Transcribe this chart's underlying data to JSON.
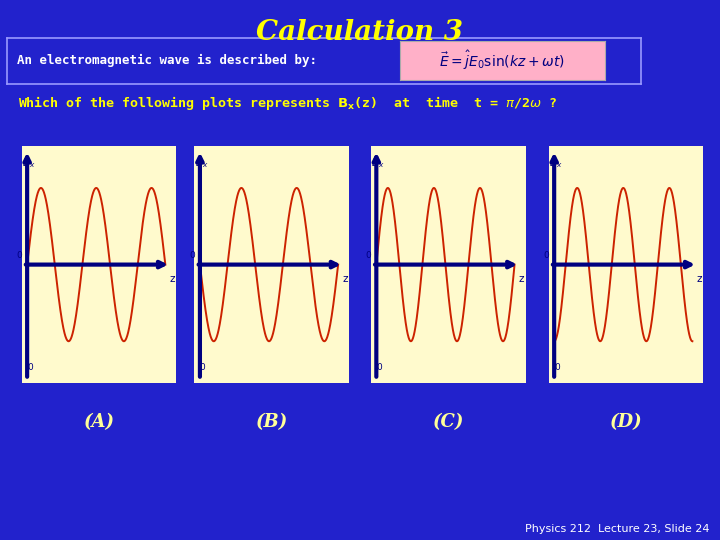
{
  "title": "Calculation 3",
  "title_color": "#FFFF00",
  "bg_color": "#2222CC",
  "subtitle": "An electromagnetic wave is described by:",
  "plot_labels": [
    "(A)",
    "(B)",
    "(C)",
    "(D)"
  ],
  "plot_bg": "#FFFACD",
  "wave_color": "#CC2200",
  "axis_color": "#000080",
  "footer": "Physics 212  Lecture 23, Slide 24",
  "footer_color": "#FFFFFF",
  "formula_bg": "#FFB0C8",
  "plots": [
    {
      "phase": 0.0,
      "n_cycles": 2.5
    },
    {
      "phase": 3.14159,
      "n_cycles": 2.5
    },
    {
      "phase": 0.0,
      "n_cycles": 3.0
    },
    {
      "phase": 1.5708,
      "n_cycles": 3.0
    }
  ]
}
